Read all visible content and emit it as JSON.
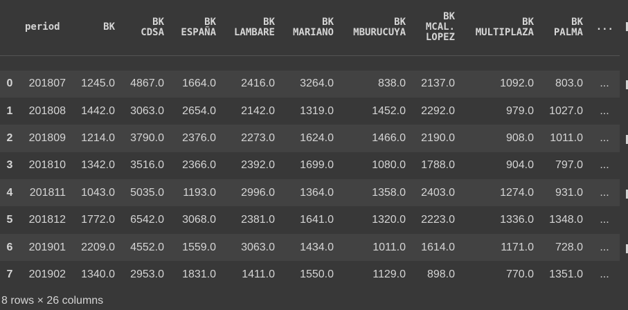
{
  "table": {
    "headers": [
      "",
      "period",
      "BK",
      "BK\nCDSA",
      "BK\nESPAÑA",
      "BK\nLAMBARE",
      "BK\nMARIANO",
      "BK\nMBURUCUYA",
      "BK\nMCAL.\nLOPEZ",
      "BK\nMULTIPLAZA",
      "BK\nPALMA",
      "..."
    ],
    "rows": [
      [
        "0",
        "201807",
        "1245.0",
        "4867.0",
        "1664.0",
        "2416.0",
        "3264.0",
        "838.0",
        "2137.0",
        "1092.0",
        "803.0",
        "..."
      ],
      [
        "1",
        "201808",
        "1442.0",
        "3063.0",
        "2654.0",
        "2142.0",
        "1319.0",
        "1452.0",
        "2292.0",
        "979.0",
        "1027.0",
        "..."
      ],
      [
        "2",
        "201809",
        "1214.0",
        "3790.0",
        "2376.0",
        "2273.0",
        "1624.0",
        "1466.0",
        "2190.0",
        "908.0",
        "1011.0",
        "..."
      ],
      [
        "3",
        "201810",
        "1342.0",
        "3516.0",
        "2366.0",
        "2392.0",
        "1699.0",
        "1080.0",
        "1788.0",
        "904.0",
        "797.0",
        "..."
      ],
      [
        "4",
        "201811",
        "1043.0",
        "5035.0",
        "1193.0",
        "2996.0",
        "1364.0",
        "1358.0",
        "2403.0",
        "1274.0",
        "931.0",
        "..."
      ],
      [
        "5",
        "201812",
        "1772.0",
        "6542.0",
        "3068.0",
        "2381.0",
        "1641.0",
        "1320.0",
        "2223.0",
        "1336.0",
        "1348.0",
        "..."
      ],
      [
        "6",
        "201901",
        "2209.0",
        "4552.0",
        "1559.0",
        "3063.0",
        "1434.0",
        "1011.0",
        "1614.0",
        "1171.0",
        "728.0",
        "..."
      ],
      [
        "7",
        "201902",
        "1340.0",
        "2953.0",
        "1831.0",
        "1411.0",
        "1550.0",
        "1129.0",
        "898.0",
        "770.0",
        "1351.0",
        "..."
      ]
    ]
  },
  "footer": "8 rows × 26 columns",
  "colors": {
    "background": "#383838",
    "stripe": "#424242",
    "text": "#d5d5d5"
  }
}
